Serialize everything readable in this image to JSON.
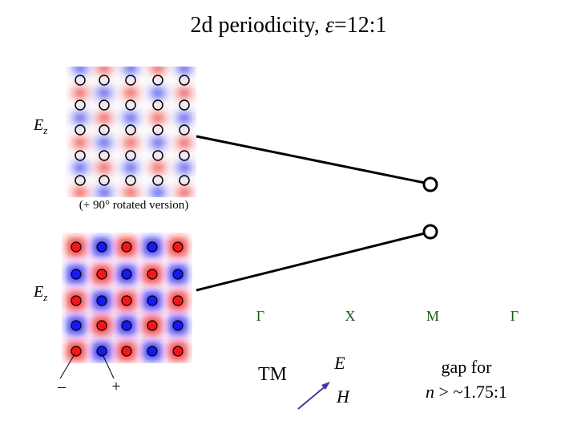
{
  "title": {
    "prefix": "2d periodicity, ",
    "epsilon": "ε",
    "ratio": "=12:1"
  },
  "top_panel": {
    "label": "E",
    "label_sub": "z",
    "caption": "(+ 90° rotated version)"
  },
  "bottom_panel": {
    "label": "E",
    "label_sub": "z",
    "minus": "–",
    "plus": "+"
  },
  "band_points": [
    "Γ",
    "X",
    "M",
    "Γ"
  ],
  "polarization": {
    "name": "TM",
    "e": "E",
    "h": "H"
  },
  "gap_note": {
    "line1": "gap for",
    "line2_n": "n",
    "line2_rest": " > ~1.75:1"
  }
}
